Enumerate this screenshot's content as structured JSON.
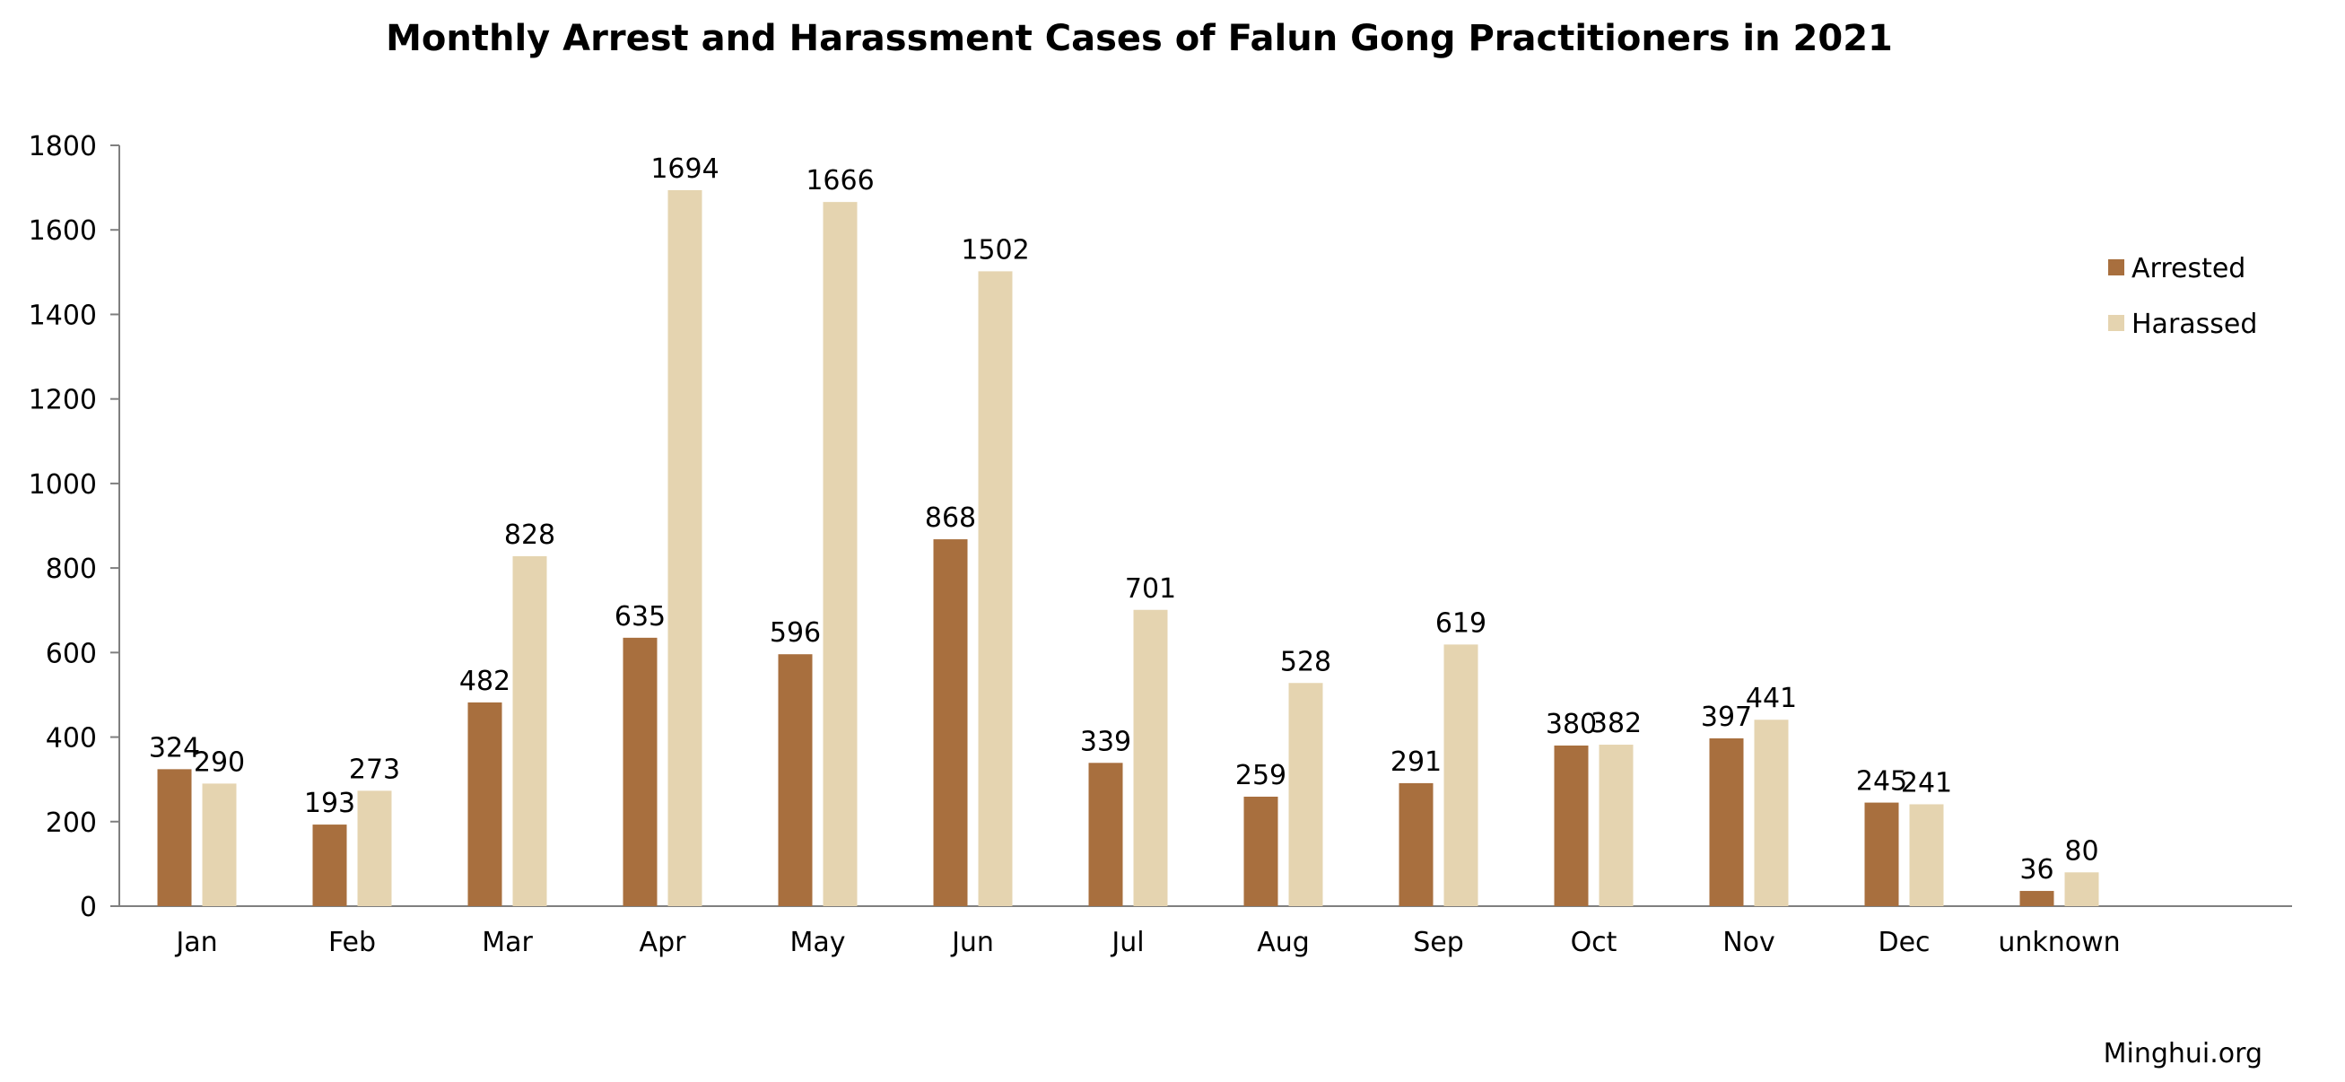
{
  "chart_data": {
    "type": "bar",
    "title": "Monthly Arrest and Harassment Cases of Falun Gong Practitioners in 2021",
    "categories": [
      "Jan",
      "Feb",
      "Mar",
      "Apr",
      "May",
      "Jun",
      "Jul",
      "Aug",
      "Sep",
      "Oct",
      "Nov",
      "Dec",
      "unknown"
    ],
    "series": [
      {
        "name": "Arrested",
        "color": "#a86f3e",
        "values": [
          324,
          193,
          482,
          635,
          596,
          868,
          339,
          259,
          291,
          380,
          397,
          245,
          36
        ]
      },
      {
        "name": "Harassed",
        "color": "#e5d4b0",
        "values": [
          290,
          273,
          828,
          1694,
          1666,
          1502,
          701,
          528,
          619,
          382,
          441,
          241,
          80
        ]
      }
    ],
    "ylim": [
      0,
      1800
    ],
    "yticks": [
      0,
      200,
      400,
      600,
      800,
      1000,
      1200,
      1400,
      1600,
      1800
    ],
    "grid": false,
    "legend_position": "top-right",
    "data_labels": true
  },
  "source": "Minghui.org"
}
